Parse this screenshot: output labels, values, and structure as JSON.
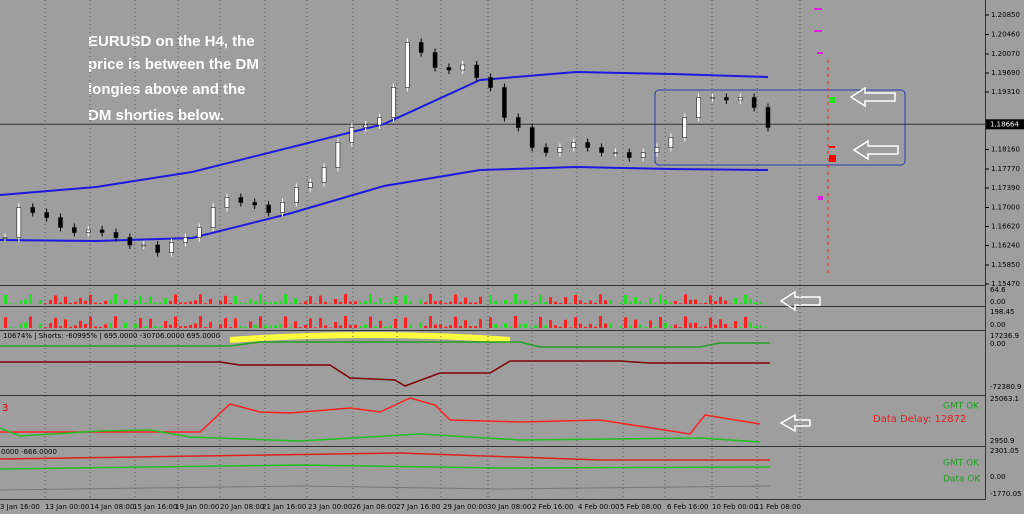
{
  "annotation": {
    "lines": [
      "EURUSD on the H4, the",
      "price is between the DM",
      "longies above and the",
      "DM shorties below."
    ]
  },
  "price_chart": {
    "ylim": [
      1.1547,
      1.2085
    ],
    "closes": [
      1.164,
      1.17,
      1.169,
      1.168,
      1.166,
      1.165,
      1.1655,
      1.165,
      1.164,
      1.1625,
      1.1625,
      1.161,
      1.163,
      1.164,
      1.166,
      1.17,
      1.172,
      1.171,
      1.1705,
      1.169,
      1.171,
      1.174,
      1.175,
      1.178,
      1.183,
      1.186,
      1.1865,
      1.188,
      1.194,
      1.203,
      1.201,
      1.198,
      1.1975,
      1.1985,
      1.196,
      1.194,
      1.188,
      1.186,
      1.182,
      1.181,
      1.182,
      1.183,
      1.182,
      1.181,
      1.181,
      1.18,
      1.181,
      1.182,
      1.184,
      1.188,
      1.192,
      1.192,
      1.1915,
      1.192,
      1.19,
      1.186
    ],
    "upper_band": [
      1.1725,
      1.1741,
      1.1771,
      1.1819,
      1.1867,
      1.1955,
      1.1971,
      1.1967,
      1.1961
    ],
    "lower_band": [
      1.1635,
      1.1633,
      1.1639,
      1.1687,
      1.1743,
      1.1775,
      1.1781,
      1.1777,
      1.1775
    ],
    "price_ticks": [
      {
        "value": 1.2085,
        "label": "1.20850"
      },
      {
        "value": 1.2046,
        "label": "1.20460"
      },
      {
        "value": 1.2007,
        "label": "1.20070"
      },
      {
        "value": 1.1969,
        "label": "1.19690"
      },
      {
        "value": 1.1931,
        "label": "1.19310"
      },
      {
        "value": 1.1816,
        "label": "1.18160"
      },
      {
        "value": 1.1777,
        "label": "1.17770"
      },
      {
        "value": 1.1739,
        "label": "1.17390"
      },
      {
        "value": 1.17,
        "label": "1.17000"
      },
      {
        "value": 1.1662,
        "label": "1.16620"
      },
      {
        "value": 1.1624,
        "label": "1.16240"
      },
      {
        "value": 1.1585,
        "label": "1.15850"
      },
      {
        "value": 1.1547,
        "label": "1.15470"
      }
    ],
    "current_price": {
      "value": 1.18664,
      "label": "1.18664"
    }
  },
  "panels": {
    "p1": [
      "64.6",
      "0.00"
    ],
    "p2": [
      "198.45",
      "0.00"
    ],
    "p3": [
      "17236.9",
      "0.00",
      "-72380.9"
    ],
    "p4": [
      "25063.1",
      "2950.9"
    ],
    "p5": [
      "2301.05",
      "0.00",
      "-1770.05"
    ]
  },
  "indicator_header": "10674% | Shorts: -60995% | 695.0000 -30706.0000 695.0000",
  "panel4_left": "3",
  "panel5_header": "0000 -666.0000",
  "status": {
    "gmt_ok_1": "GMT OK",
    "data_delay": "Data Delay: 12872",
    "gmt_ok_2": "GMT OK",
    "data_ok": "Data OK"
  },
  "dates": [
    "3 Jan 16:00",
    "13 Jan 00:00",
    "14 Jan 08:00",
    "15 Jan 16:00",
    "19 Jan 00:00",
    "20 Jan 08:00",
    "21 Jan 16:00",
    "23 Jan 00:00",
    "26 Jan 08:00",
    "27 Jan 16:00",
    "29 Jan 00:00",
    "30 Jan 08:00",
    "2 Feb 16:00",
    "4 Feb 00:00",
    "5 Feb 08:00",
    "6 Feb 16:00",
    "10 Feb 00:00",
    "11 Feb 08:00"
  ]
}
